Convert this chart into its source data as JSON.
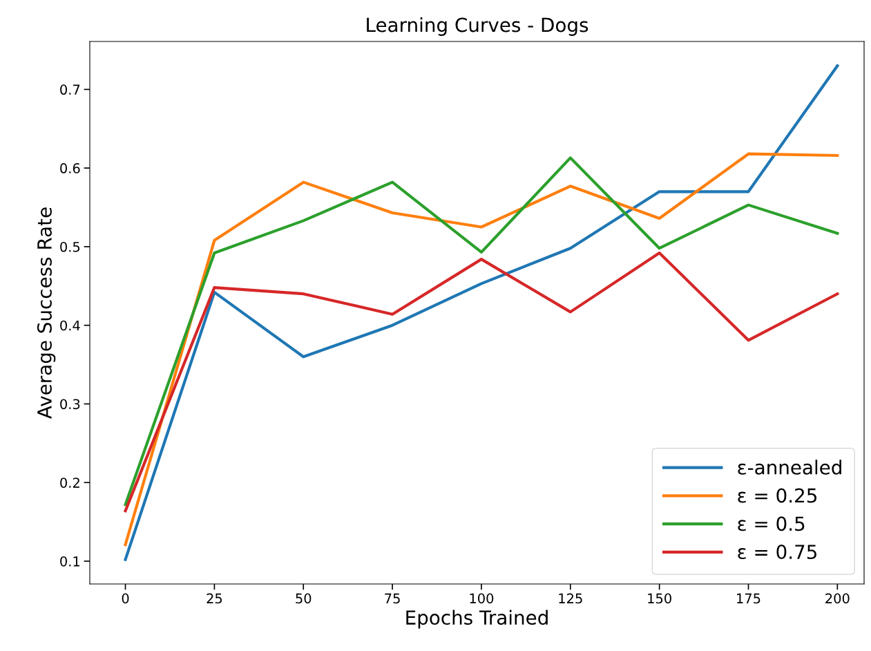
{
  "chart_data": {
    "type": "line",
    "title": "Learning Curves - Dogs",
    "xlabel": "Epochs Trained",
    "ylabel": "Average Success Rate",
    "x": [
      0,
      25,
      50,
      75,
      100,
      125,
      150,
      175,
      200
    ],
    "series": [
      {
        "name": "ε-annealed",
        "color": "#1f77b4",
        "values": [
          0.102,
          0.442,
          0.36,
          0.4,
          0.453,
          0.498,
          0.57,
          0.57,
          0.73
        ]
      },
      {
        "name": "ε = 0.25",
        "color": "#ff7f0e",
        "values": [
          0.121,
          0.508,
          0.582,
          0.543,
          0.525,
          0.577,
          0.536,
          0.618,
          0.616
        ]
      },
      {
        "name": "ε = 0.5",
        "color": "#2ca02c",
        "values": [
          0.172,
          0.492,
          0.533,
          0.582,
          0.493,
          0.613,
          0.498,
          0.553,
          0.517
        ]
      },
      {
        "name": "ε = 0.75",
        "color": "#d62728",
        "values": [
          0.164,
          0.448,
          0.44,
          0.414,
          0.484,
          0.417,
          0.492,
          0.381,
          0.44
        ]
      }
    ],
    "xlim": [
      -10,
      207.5
    ],
    "xticks": [
      0,
      25,
      50,
      75,
      100,
      125,
      150,
      175,
      200
    ],
    "ylim": [
      0.071,
      0.761
    ],
    "yticks": [
      0.1,
      0.2,
      0.3,
      0.4,
      0.5,
      0.6,
      0.7
    ],
    "grid": false,
    "legend": "bottom right",
    "marker": "none",
    "line_style": "solid"
  }
}
